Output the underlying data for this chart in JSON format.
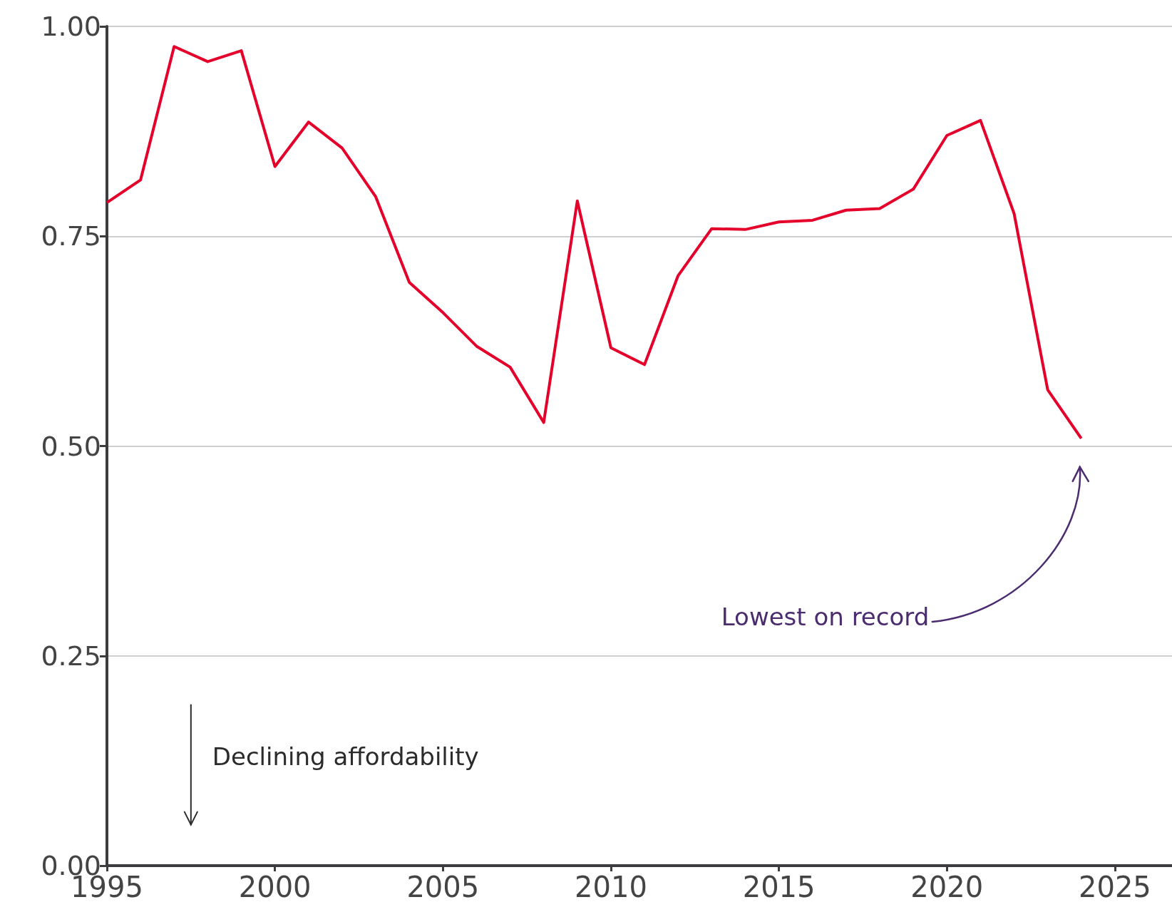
{
  "chart_data": {
    "type": "line",
    "x": [
      1995,
      1996,
      1997,
      1998,
      1999,
      2000,
      2001,
      2002,
      2003,
      2004,
      2005,
      2006,
      2007,
      2008,
      2009,
      2010,
      2011,
      2012,
      2013,
      2014,
      2015,
      2016,
      2017,
      2018,
      2019,
      2020,
      2021,
      2022,
      2023,
      2024
    ],
    "series": [
      {
        "color": "#e4002b",
        "values": [
          0.79,
          0.817,
          0.976,
          0.958,
          0.971,
          0.833,
          0.886,
          0.855,
          0.797,
          0.695,
          0.659,
          0.619,
          0.594,
          0.528,
          0.792,
          0.617,
          0.597,
          0.703,
          0.759,
          0.758,
          0.767,
          0.769,
          0.781,
          0.783,
          0.806,
          0.87,
          0.888,
          0.777,
          0.567,
          0.509
        ]
      }
    ],
    "xlim": [
      1995,
      2026.7
    ],
    "xticks": [
      1995,
      2000,
      2005,
      2010,
      2015,
      2020,
      2025
    ],
    "ylim": [
      0,
      1
    ],
    "yticks": [
      {
        "value": 0,
        "label": "0.00"
      },
      {
        "value": 0.25,
        "label": "0.25"
      },
      {
        "value": 0.5,
        "label": "0.50"
      },
      {
        "value": 0.75,
        "label": "0.75"
      },
      {
        "value": 1,
        "label": "1.00"
      }
    ],
    "grid": "y",
    "marker": "none",
    "line_style": "solid",
    "annotations": [
      "Lowest on record",
      "Declining affordability"
    ]
  }
}
